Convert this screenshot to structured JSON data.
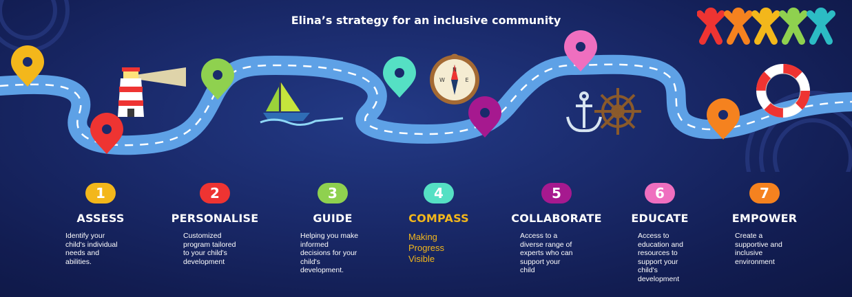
{
  "title": "Elina’s strategy for an inclusive community",
  "colors": {
    "road": "#5ea1e6",
    "step1": "#f3b71b",
    "step2": "#ee3432",
    "step3": "#8fd14f",
    "step4": "#55e0c4",
    "step5": "#a6198f",
    "step6": "#ef6fbf",
    "step7": "#f5821f",
    "compass_text": "#f3b71b"
  },
  "icons": [
    "lighthouse-icon",
    "sailboat-icon",
    "compass-icon",
    "anchor-icon",
    "ships-wheel-icon",
    "lifebuoy-icon",
    "people-logo-icon"
  ],
  "steps": [
    {
      "number": "1",
      "name": "ASSESS",
      "description": "Identify your\nchild's individual\nneeds and\nabilities."
    },
    {
      "number": "2",
      "name": "PERSONALISE",
      "description": "Customized\nprogram tailored\nto your child's\ndevelopment"
    },
    {
      "number": "3",
      "name": "GUIDE",
      "description": "Helping you make\ninformed\ndecisions for your\nchild's\ndevelopment."
    },
    {
      "number": "4",
      "name": "COMPASS",
      "description": "Making\nProgress\nVisible"
    },
    {
      "number": "5",
      "name": "COLLABORATE",
      "description": "Access to a\ndiverse range of\nexperts who can\nsupport your\nchild"
    },
    {
      "number": "6",
      "name": "EDUCATE",
      "description": "Access to\neducation and\nresources to\nsupport your\nchild's\ndevelopment"
    },
    {
      "number": "7",
      "name": "EMPOWER",
      "description": "Create a\nsupportive and\ninclusive\nenvironment"
    }
  ]
}
